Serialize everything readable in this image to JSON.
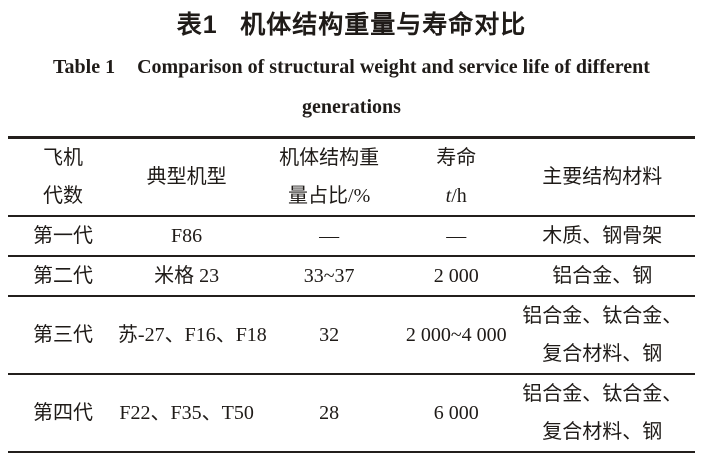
{
  "captions": {
    "zh_label": "表1",
    "zh_text": "机体结构重量与寿命对比",
    "en_label": "Table 1",
    "en_line1": "Comparison of structural weight and service life of different",
    "en_line2": "generations"
  },
  "table": {
    "header": {
      "generation": "飞机\n代数",
      "model": "典型机型",
      "weight": "机体结构重\n量占比/%",
      "life_label": "寿命",
      "life_symbol": "t",
      "life_unit": "/h",
      "materials": "主要结构材料"
    },
    "rows": [
      {
        "generation": "第一代",
        "model": "F86",
        "weight": "—",
        "life": "—",
        "materials": "木质、钢骨架"
      },
      {
        "generation": "第二代",
        "model": "米格 23",
        "weight": "33~37",
        "life": "2 000",
        "materials": "铝合金、钢"
      },
      {
        "generation": "第三代",
        "model": "苏-27、F16、F18",
        "weight": "32",
        "life": "2 000~4 000",
        "materials": "铝合金、钛合金、\n复合材料、钢"
      },
      {
        "generation": "第四代",
        "model": "F22、F35、T50",
        "weight": "28",
        "life": "6 000",
        "materials": "铝合金、钛合金、\n复合材料、钢"
      }
    ]
  },
  "colors": {
    "text": "#1f1b18",
    "rule": "#231f1c",
    "background": "#ffffff"
  }
}
